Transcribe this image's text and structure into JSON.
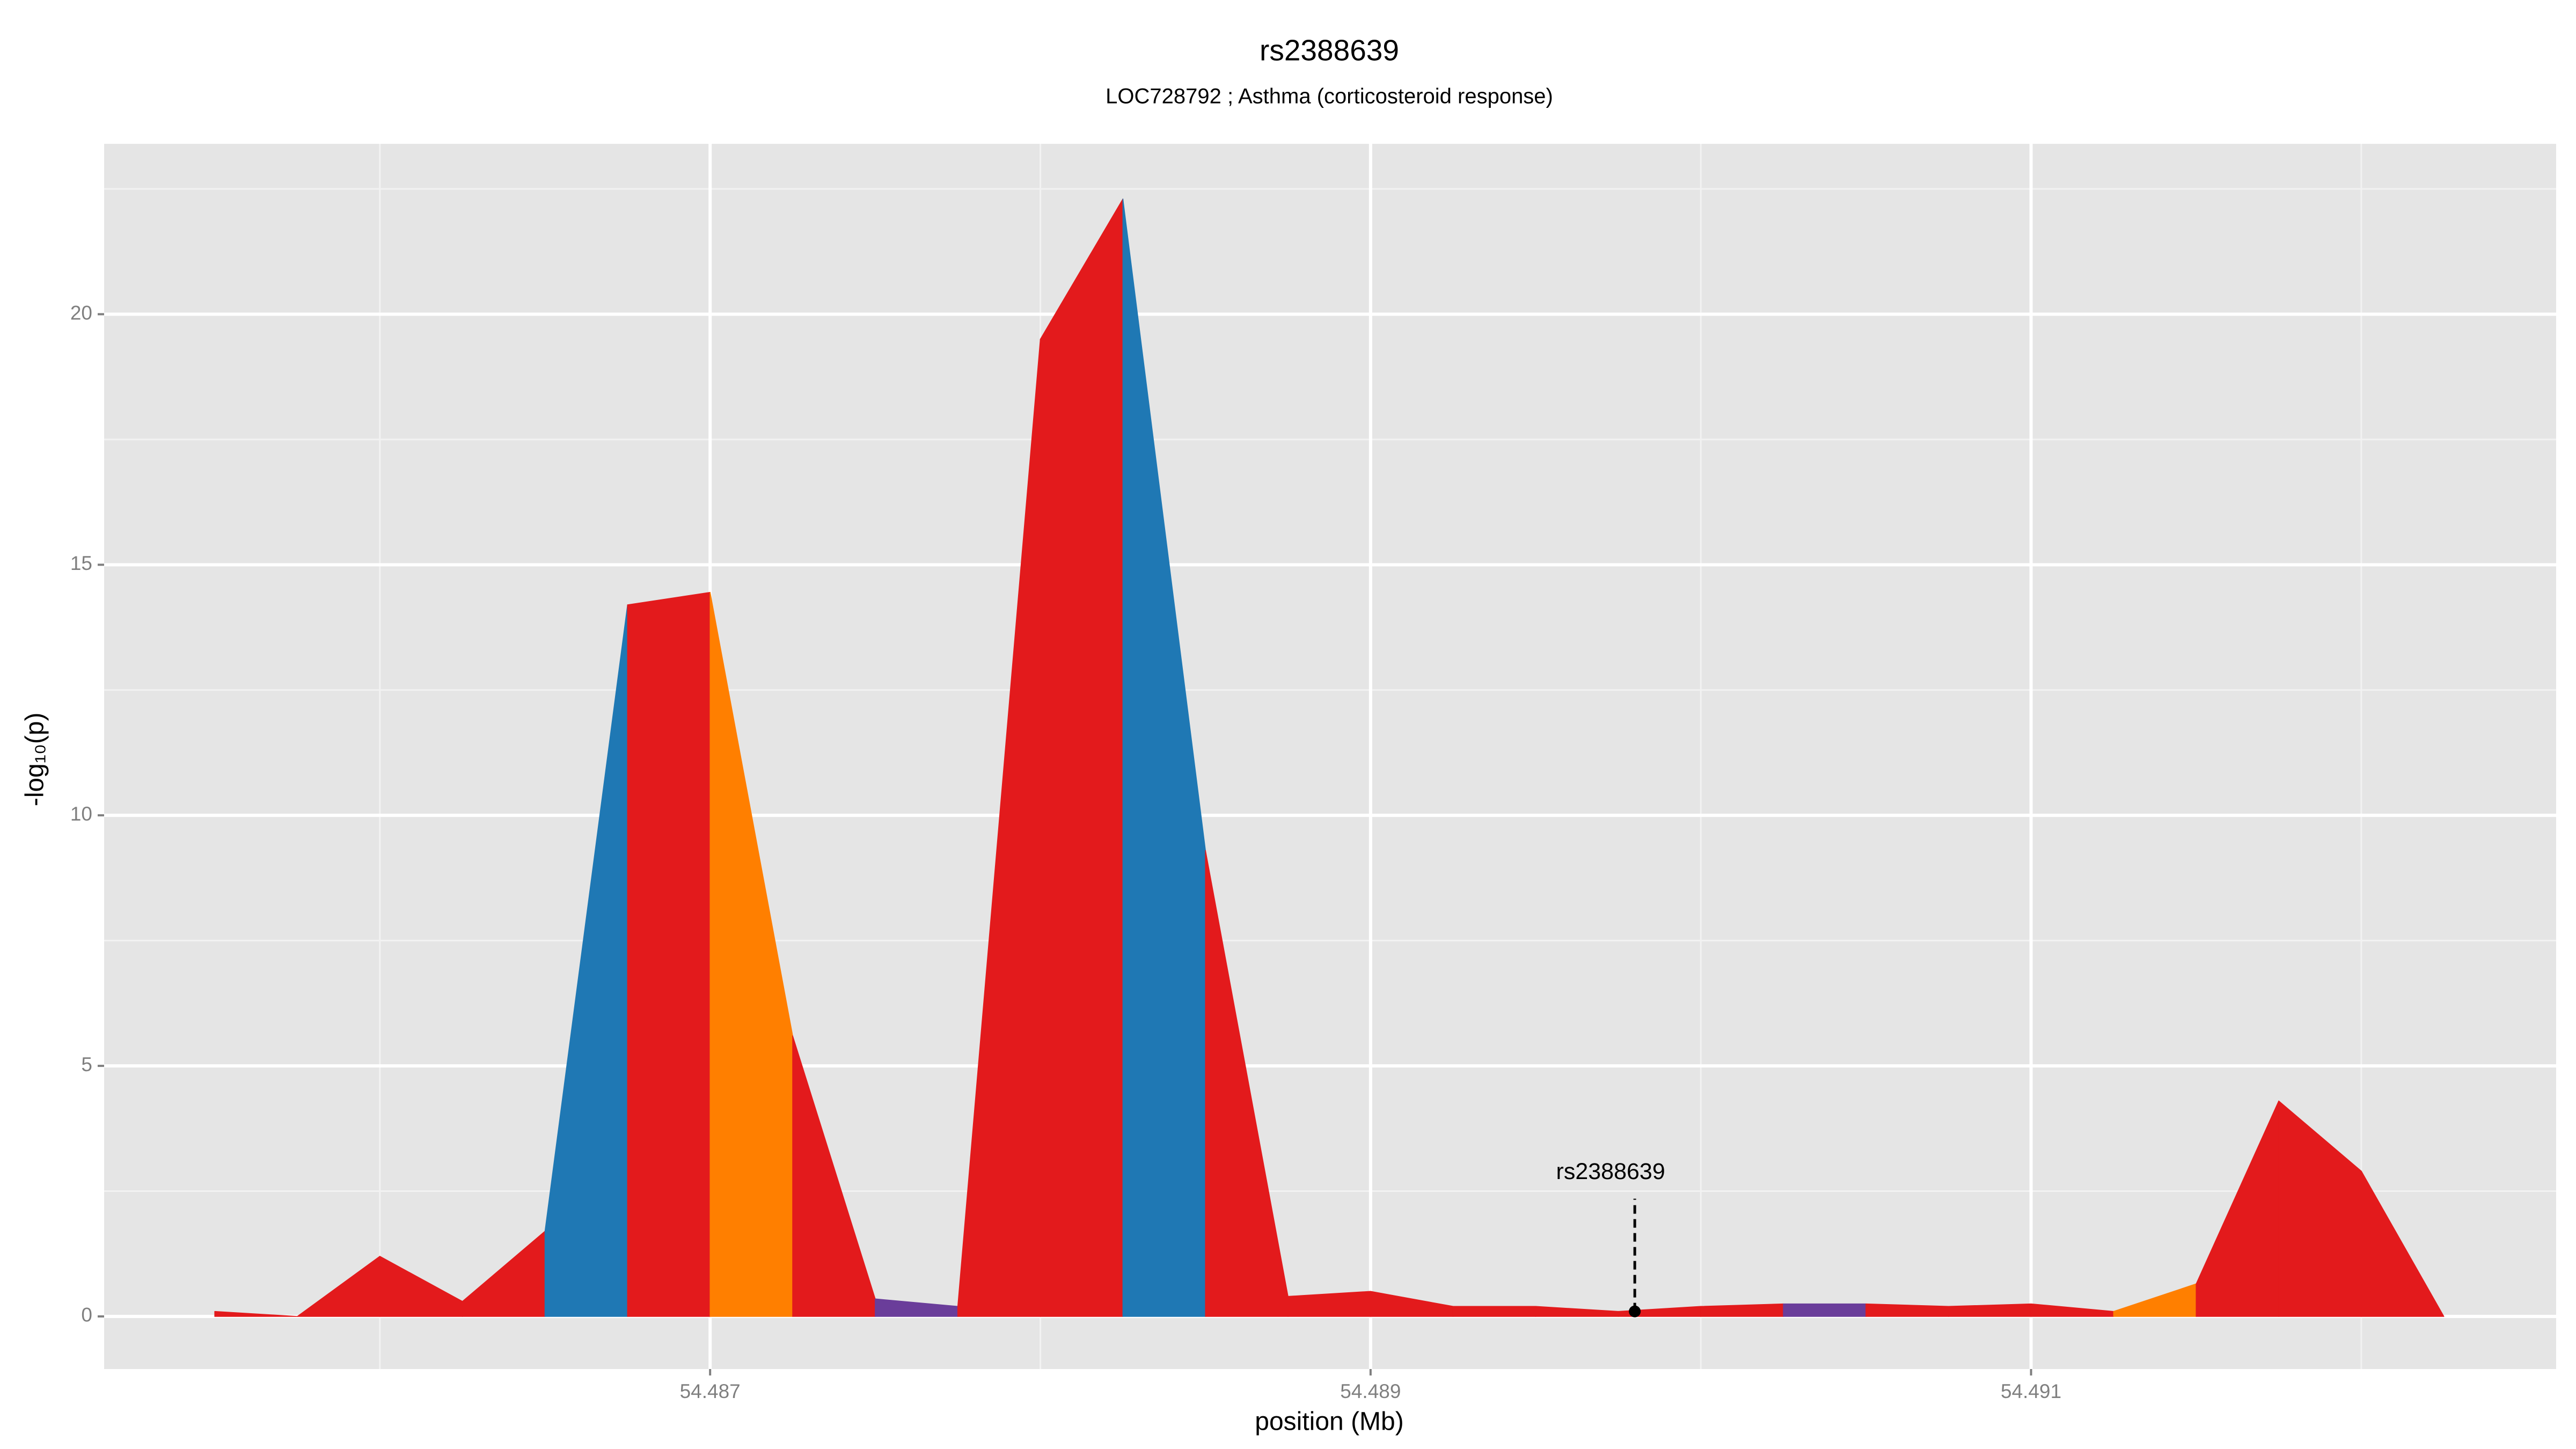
{
  "chart_data": {
    "type": "area",
    "title": "rs2388639",
    "subtitle": "LOC728792 ; Asthma (corticosteroid response)",
    "x_label": "position (Mb)",
    "y_label": "-log₁₀(p)",
    "x": [
      54.4855,
      54.48575,
      54.486,
      54.48625,
      54.4865,
      54.48675,
      54.487,
      54.48725,
      54.4875,
      54.48775,
      54.488,
      54.48825,
      54.4885,
      54.48875,
      54.489,
      54.48925,
      54.4895,
      54.48975,
      54.49,
      54.49025,
      54.4905,
      54.49075,
      54.491,
      54.49125,
      54.4915,
      54.49175,
      54.492,
      54.49225
    ],
    "y": [
      0.1,
      0.0,
      1.2,
      0.3,
      1.7,
      14.2,
      14.45,
      5.6,
      0.35,
      0.2,
      19.5,
      22.3,
      9.3,
      0.4,
      0.5,
      0.2,
      0.2,
      0.1,
      0.2,
      0.25,
      0.25,
      0.2,
      0.25,
      0.1,
      0.65,
      4.3,
      2.9,
      0.0
    ],
    "segment_colors": [
      "#e31a1c",
      "#e31a1c",
      "#e31a1c",
      "#e31a1c",
      "#1f78b4",
      "#e31a1c",
      "#ff7f00",
      "#e31a1c",
      "#6a3d9a",
      "#e31a1c",
      "#e31a1c",
      "#1f78b4",
      "#e31a1c",
      "#e31a1c",
      "#e31a1c",
      "#e31a1c",
      "#e31a1c",
      "#e31a1c",
      "#e31a1c",
      "#6a3d9a",
      "#e31a1c",
      "#e31a1c",
      "#e31a1c",
      "#ff7f00",
      "#e31a1c",
      "#e31a1c",
      "#e31a1c"
    ],
    "xlim": [
      54.485165,
      54.49259
    ],
    "ylim": [
      -1.05,
      23.4
    ],
    "xticks": [
      54.487,
      54.489,
      54.491
    ],
    "x_minor_ticks": [
      54.486,
      54.488,
      54.49,
      54.492
    ],
    "yticks": [
      0,
      5,
      10,
      15,
      20
    ],
    "y_minor_ticks": [
      2.5,
      7.5,
      12.5,
      17.5,
      22.5
    ],
    "grid": true,
    "annotation": {
      "text": "rs2388639",
      "x": 54.4898,
      "y": 0.1
    }
  }
}
